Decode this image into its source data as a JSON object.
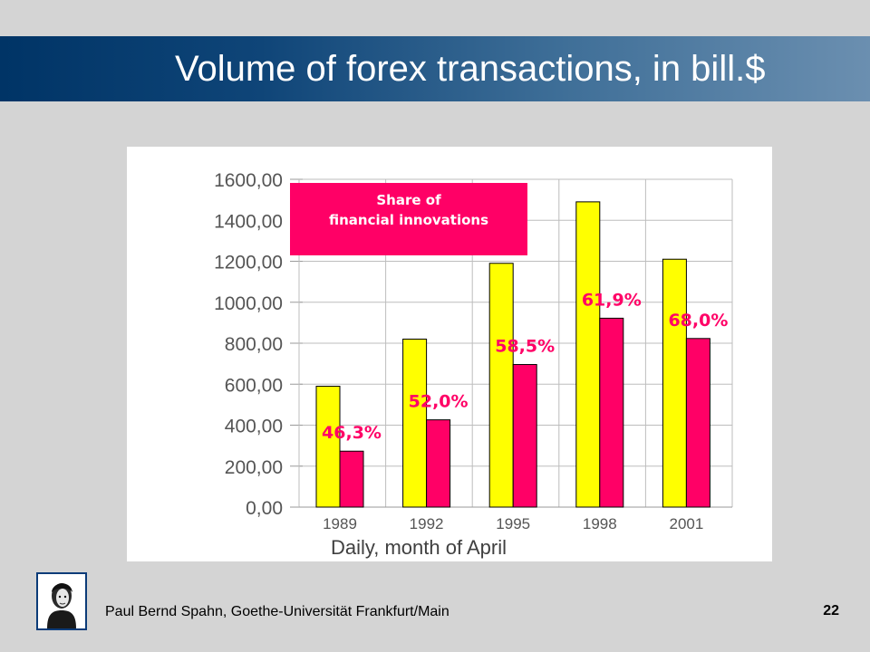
{
  "slide": {
    "title": "Volume of forex transactions, in bill.$",
    "footer": "Paul Bernd Spahn, Goethe-Universität Frankfurt/Main",
    "page_number": "22"
  },
  "chart_data": {
    "type": "bar",
    "categories": [
      "1989",
      "1992",
      "1995",
      "1998",
      "2001"
    ],
    "series": [
      {
        "values": [
          590,
          820,
          1190,
          1490,
          1210
        ],
        "color": "#ffff00"
      },
      {
        "values": [
          273,
          426,
          696,
          922,
          823
        ],
        "color": "#ff0066"
      }
    ],
    "data_labels": [
      "46,3%",
      "52,0%",
      "58,5%",
      "61,9%",
      "68,0%"
    ],
    "y_ticks": [
      "0,00",
      "200,00",
      "400,00",
      "600,00",
      "800,00",
      "1000,00",
      "1200,00",
      "1400,00",
      "1600,00"
    ],
    "ylim": [
      0,
      1600
    ],
    "grid": true,
    "legend_box": {
      "text": [
        "Share of",
        "financial innovations"
      ],
      "color": "#ff0066"
    },
    "caption": "Daily, month of April"
  }
}
